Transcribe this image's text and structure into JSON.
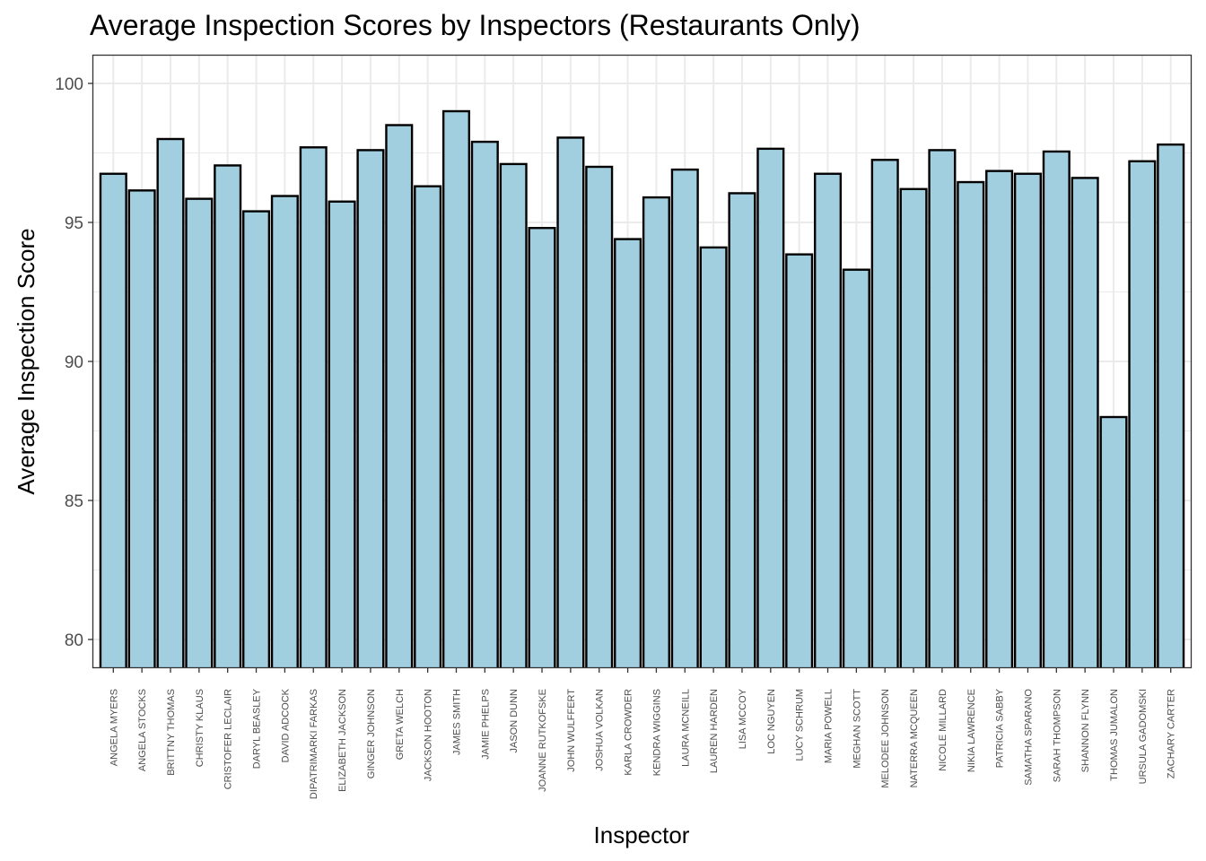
{
  "chart_data": {
    "type": "bar",
    "title": "Average Inspection Scores by Inspectors (Restaurants Only)",
    "xlabel": "Inspector",
    "ylabel": "Average Inspection Score",
    "ylim": [
      79,
      101
    ],
    "yticks": [
      80,
      85,
      90,
      95,
      100
    ],
    "grid": true,
    "bar_color": "#a2cfe0",
    "bar_edge_color": "#000000",
    "grid_color": "#ebebeb",
    "categories": [
      "ANGELA MYERS",
      "ANGELA STOCKS",
      "BRITTNY THOMAS",
      "CHRISTY KLAUS",
      "CRISTOFER LECLAIR",
      "DARYL BEASLEY",
      "DAVID ADCOCK",
      "DIPATRIMARKI FARKAS",
      "ELIZABETH JACKSON",
      "GINGER JOHNSON",
      "GRETA WELCH",
      "JACKSON HOOTON",
      "JAMES SMITH",
      "JAMIE PHELPS",
      "JASON DUNN",
      "JOANNE RUTKOFSKE",
      "JOHN WULFFERT",
      "JOSHUA VOLKAN",
      "KARLA CROWDER",
      "KENDRA WIGGINS",
      "LAURA MCNEILL",
      "LAUREN HARDEN",
      "LISA MCCOY",
      "LOC NGUYEN",
      "LUCY SCHRUM",
      "MARIA POWELL",
      "MEGHAN SCOTT",
      "MELODEE JOHNSON",
      "NATERRA MCQUEEN",
      "NICOLE MILLARD",
      "NIKIA LAWRENCE",
      "PATRICIA SABBY",
      "SAMATHA SPARANO",
      "SARAH THOMPSON",
      "SHANNON FLYNN",
      "THOMAS JUMALON",
      "URSULA GADOMSKI",
      "ZACHARY CARTER"
    ],
    "values": [
      96.75,
      96.15,
      98.0,
      95.85,
      97.05,
      95.4,
      95.95,
      97.7,
      95.75,
      97.6,
      98.5,
      96.3,
      99.0,
      97.9,
      97.1,
      94.8,
      98.05,
      97.0,
      94.4,
      95.9,
      96.9,
      94.1,
      96.05,
      97.65,
      93.85,
      96.75,
      93.3,
      97.25,
      96.2,
      97.6,
      96.45,
      96.85,
      96.75,
      97.55,
      96.6,
      88.0,
      97.2,
      97.8
    ]
  }
}
